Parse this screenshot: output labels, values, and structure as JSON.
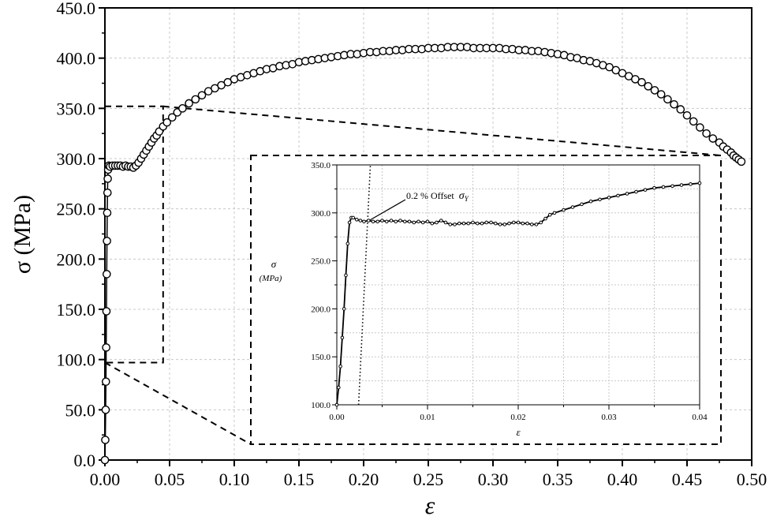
{
  "chart_data": [
    {
      "type": "scatter",
      "title": "",
      "xlabel": "ε",
      "ylabel": "σ (MPa)",
      "xlim": [
        0.0,
        0.5
      ],
      "ylim": [
        0.0,
        450.0
      ],
      "x_ticks": [
        "0.00",
        "0.05",
        "0.10",
        "0.15",
        "0.20",
        "0.25",
        "0.30",
        "0.35",
        "0.40",
        "0.45",
        "0.50"
      ],
      "y_ticks": [
        "0.0",
        "50.0",
        "100.0",
        "150.0",
        "200.0",
        "250.0",
        "300.0",
        "350.0",
        "400.0",
        "450.0"
      ],
      "grid": true,
      "marker": "open-circle",
      "series": [
        {
          "points": [
            [
              0.0,
              0.0
            ],
            [
              0.0003,
              20
            ],
            [
              0.0006,
              50
            ],
            [
              0.0008,
              78
            ],
            [
              0.001,
              112
            ],
            [
              0.0012,
              148
            ],
            [
              0.0014,
              185
            ],
            [
              0.0016,
              218
            ],
            [
              0.0018,
              246
            ],
            [
              0.002,
              266
            ],
            [
              0.0022,
              280
            ],
            [
              0.0025,
              289
            ],
            [
              0.003,
              293
            ],
            [
              0.004,
              292
            ],
            [
              0.006,
              293
            ],
            [
              0.008,
              293
            ],
            [
              0.01,
              293
            ],
            [
              0.012,
              293
            ],
            [
              0.014,
              292
            ],
            [
              0.016,
              293
            ],
            [
              0.018,
              292
            ],
            [
              0.02,
              292
            ],
            [
              0.022,
              291
            ],
            [
              0.024,
              293
            ],
            [
              0.026,
              296
            ],
            [
              0.028,
              300
            ],
            [
              0.03,
              304
            ],
            [
              0.032,
              308
            ],
            [
              0.034,
              312
            ],
            [
              0.036,
              316
            ],
            [
              0.038,
              320
            ],
            [
              0.04,
              323
            ],
            [
              0.042,
              327
            ],
            [
              0.045,
              332
            ],
            [
              0.048,
              336
            ],
            [
              0.052,
              341
            ],
            [
              0.056,
              346
            ],
            [
              0.06,
              350
            ],
            [
              0.065,
              355
            ],
            [
              0.07,
              359
            ],
            [
              0.075,
              363
            ],
            [
              0.08,
              367
            ],
            [
              0.085,
              370
            ],
            [
              0.09,
              373
            ],
            [
              0.095,
              376
            ],
            [
              0.1,
              379
            ],
            [
              0.105,
              381
            ],
            [
              0.11,
              383
            ],
            [
              0.115,
              385
            ],
            [
              0.12,
              387
            ],
            [
              0.125,
              389
            ],
            [
              0.13,
              390
            ],
            [
              0.135,
              392
            ],
            [
              0.14,
              393
            ],
            [
              0.145,
              394
            ],
            [
              0.15,
              396
            ],
            [
              0.155,
              397
            ],
            [
              0.16,
              398
            ],
            [
              0.165,
              399
            ],
            [
              0.17,
              400
            ],
            [
              0.175,
              401
            ],
            [
              0.18,
              402
            ],
            [
              0.185,
              403
            ],
            [
              0.19,
              404
            ],
            [
              0.195,
              404
            ],
            [
              0.2,
              405
            ],
            [
              0.205,
              406
            ],
            [
              0.21,
              406
            ],
            [
              0.215,
              407
            ],
            [
              0.22,
              407
            ],
            [
              0.225,
              408
            ],
            [
              0.23,
              408
            ],
            [
              0.235,
              409
            ],
            [
              0.24,
              409
            ],
            [
              0.245,
              409
            ],
            [
              0.25,
              410
            ],
            [
              0.255,
              410
            ],
            [
              0.26,
              410
            ],
            [
              0.265,
              411
            ],
            [
              0.27,
              411
            ],
            [
              0.275,
              411
            ],
            [
              0.28,
              411
            ],
            [
              0.285,
              410
            ],
            [
              0.29,
              410
            ],
            [
              0.295,
              410
            ],
            [
              0.3,
              410
            ],
            [
              0.305,
              410
            ],
            [
              0.31,
              409
            ],
            [
              0.315,
              409
            ],
            [
              0.32,
              408
            ],
            [
              0.325,
              408
            ],
            [
              0.33,
              407
            ],
            [
              0.335,
              407
            ],
            [
              0.34,
              406
            ],
            [
              0.345,
              405
            ],
            [
              0.35,
              404
            ],
            [
              0.355,
              403
            ],
            [
              0.36,
              401
            ],
            [
              0.365,
              400
            ],
            [
              0.37,
              398
            ],
            [
              0.375,
              397
            ],
            [
              0.38,
              395
            ],
            [
              0.385,
              393
            ],
            [
              0.39,
              391
            ],
            [
              0.395,
              388
            ],
            [
              0.4,
              385
            ],
            [
              0.405,
              382
            ],
            [
              0.41,
              379
            ],
            [
              0.415,
              376
            ],
            [
              0.42,
              372
            ],
            [
              0.425,
              368
            ],
            [
              0.43,
              364
            ],
            [
              0.435,
              359
            ],
            [
              0.44,
              354
            ],
            [
              0.445,
              349
            ],
            [
              0.45,
              343
            ],
            [
              0.455,
              337
            ],
            [
              0.46,
              331
            ],
            [
              0.465,
              325
            ],
            [
              0.47,
              320
            ],
            [
              0.475,
              316
            ],
            [
              0.478,
              312
            ],
            [
              0.481,
              309
            ],
            [
              0.484,
              306
            ],
            [
              0.486,
              303
            ],
            [
              0.488,
              301
            ],
            [
              0.49,
              299
            ],
            [
              0.492,
              297
            ]
          ]
        }
      ],
      "zoom_box": {
        "x": [
          0.0,
          0.045
        ],
        "y": [
          97,
          352
        ]
      }
    },
    {
      "type": "scatter",
      "role": "inset",
      "title": "",
      "xlabel": "ε",
      "ylabel": "σ",
      "ylabel_unit": "(MPa)",
      "xlim": [
        0.0,
        0.04
      ],
      "ylim": [
        100.0,
        350.0
      ],
      "x_ticks": [
        "0.00",
        "0.01",
        "0.02",
        "0.03",
        "0.04"
      ],
      "y_ticks": [
        "100.0",
        "150.0",
        "200.0",
        "250.0",
        "300.0",
        "350.0"
      ],
      "grid": true,
      "marker": "small-open-circle-line",
      "series": [
        {
          "points": [
            [
              0.0,
              100
            ],
            [
              0.0002,
              118
            ],
            [
              0.0004,
              140
            ],
            [
              0.0006,
              170
            ],
            [
              0.0008,
              200
            ],
            [
              0.001,
              235
            ],
            [
              0.0012,
              268
            ],
            [
              0.0014,
              290
            ],
            [
              0.0016,
              295
            ],
            [
              0.0018,
              295
            ],
            [
              0.0022,
              293
            ],
            [
              0.0026,
              292
            ],
            [
              0.003,
              291
            ],
            [
              0.0035,
              292
            ],
            [
              0.004,
              291
            ],
            [
              0.0045,
              291
            ],
            [
              0.005,
              292
            ],
            [
              0.0055,
              291
            ],
            [
              0.006,
              292
            ],
            [
              0.0065,
              291
            ],
            [
              0.007,
              292
            ],
            [
              0.0075,
              291
            ],
            [
              0.008,
              291
            ],
            [
              0.0085,
              290
            ],
            [
              0.009,
              291
            ],
            [
              0.0095,
              290
            ],
            [
              0.01,
              291
            ],
            [
              0.0105,
              289
            ],
            [
              0.011,
              290
            ],
            [
              0.0115,
              292
            ],
            [
              0.012,
              290
            ],
            [
              0.0125,
              288
            ],
            [
              0.013,
              288
            ],
            [
              0.0135,
              289
            ],
            [
              0.014,
              289
            ],
            [
              0.0145,
              289
            ],
            [
              0.015,
              290
            ],
            [
              0.0155,
              289
            ],
            [
              0.016,
              289
            ],
            [
              0.0165,
              290
            ],
            [
              0.017,
              290
            ],
            [
              0.0175,
              289
            ],
            [
              0.018,
              288
            ],
            [
              0.0185,
              288
            ],
            [
              0.019,
              289
            ],
            [
              0.0195,
              290
            ],
            [
              0.02,
              290
            ],
            [
              0.0205,
              289
            ],
            [
              0.021,
              289
            ],
            [
              0.0215,
              288
            ],
            [
              0.022,
              288
            ],
            [
              0.0225,
              290
            ],
            [
              0.023,
              294
            ],
            [
              0.0235,
              298
            ],
            [
              0.024,
              300
            ],
            [
              0.025,
              303
            ],
            [
              0.026,
              306
            ],
            [
              0.027,
              309
            ],
            [
              0.028,
              312
            ],
            [
              0.029,
              314
            ],
            [
              0.03,
              316
            ],
            [
              0.031,
              318
            ],
            [
              0.032,
              320
            ],
            [
              0.033,
              322
            ],
            [
              0.034,
              324
            ],
            [
              0.035,
              326
            ],
            [
              0.036,
              327
            ],
            [
              0.037,
              328
            ],
            [
              0.038,
              329
            ],
            [
              0.039,
              330
            ],
            [
              0.04,
              331
            ]
          ]
        }
      ],
      "offset_line": {
        "start": [
          0.0024,
          100
        ],
        "end": [
          0.0037,
          350
        ]
      },
      "annotation": {
        "text": "0.2 % Offset",
        "symbol": "σ",
        "subscript": "Y",
        "target": [
          0.0035,
          291
        ]
      }
    }
  ]
}
